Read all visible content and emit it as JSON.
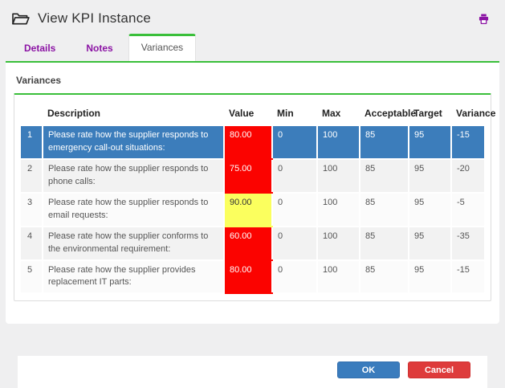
{
  "header": {
    "title": "View KPI Instance",
    "icons": {
      "left": "open-folder-icon",
      "right": "printer-icon"
    }
  },
  "tabs": [
    {
      "label": "Details",
      "active": false
    },
    {
      "label": "Notes",
      "active": false
    },
    {
      "label": "Variances",
      "active": true
    }
  ],
  "section": {
    "title": "Variances"
  },
  "table": {
    "columns": [
      "",
      "Description",
      "Value",
      "Min",
      "Max",
      "Acceptable",
      "Target",
      "Variance"
    ],
    "rows": [
      {
        "num": "1",
        "description": "Please rate how the supplier responds to emergency call-out situations:",
        "value": "80.00",
        "value_color": "red",
        "min": "0",
        "max": "100",
        "acceptable": "85",
        "target": "95",
        "variance": "-15",
        "selected": true
      },
      {
        "num": "2",
        "description": "Please rate how the supplier responds to phone calls:",
        "value": "75.00",
        "value_color": "red",
        "min": "0",
        "max": "100",
        "acceptable": "85",
        "target": "95",
        "variance": "-20",
        "selected": false
      },
      {
        "num": "3",
        "description": "Please rate how the supplier responds to email requests:",
        "value": "90.00",
        "value_color": "yellow",
        "min": "0",
        "max": "100",
        "acceptable": "85",
        "target": "95",
        "variance": "-5",
        "selected": false
      },
      {
        "num": "4",
        "description": "Please rate how the supplier conforms to the environmental requirement:",
        "value": "60.00",
        "value_color": "red",
        "min": "0",
        "max": "100",
        "acceptable": "85",
        "target": "95",
        "variance": "-35",
        "selected": false
      },
      {
        "num": "5",
        "description": "Please rate how the supplier provides replacement IT parts:",
        "value": "80.00",
        "value_color": "red",
        "min": "0",
        "max": "100",
        "acceptable": "85",
        "target": "95",
        "variance": "-15",
        "selected": false
      }
    ]
  },
  "footer": {
    "ok_label": "OK",
    "cancel_label": "Cancel"
  },
  "colors": {
    "accent_green": "#3abf3a",
    "tab_purple": "#8b13a4",
    "selected_row_blue": "#3c7dbb",
    "value_red": "#fb0300",
    "value_yellow": "#fbff5e",
    "ok_button": "#3a7cbd",
    "cancel_button": "#de3b3b",
    "dialog_background": "#efeff0"
  }
}
